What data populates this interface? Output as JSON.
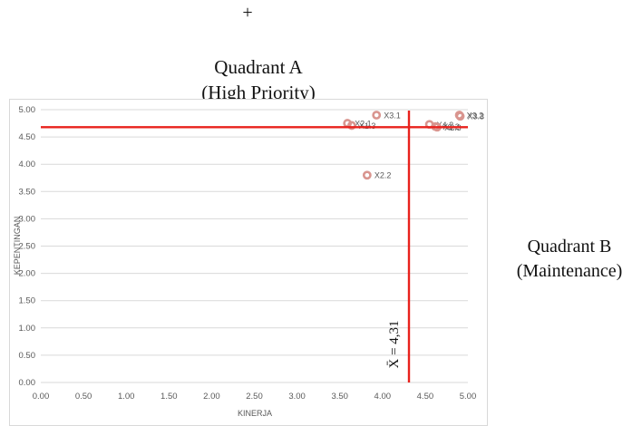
{
  "annotations": {
    "plus": "+",
    "quadrant_a_title": "Quadrant A",
    "quadrant_a_sub": "(High Priority)",
    "quadrant_b_title": "Quadrant B",
    "quadrant_b_sub": "(Maintenance)",
    "mean_label": "X̄ = 4,31"
  },
  "colors": {
    "reference_line": "#e8211c",
    "marker": "#d9958f",
    "axis_text": "#595959",
    "grid": "#d9d9d9"
  },
  "chart_data": {
    "type": "scatter",
    "title": "",
    "xlabel": "KINERJA",
    "ylabel": "KEPENTINGAN",
    "xlim": [
      0,
      5
    ],
    "ylim": [
      0,
      5
    ],
    "x_ticks": [
      "0.00",
      "0.50",
      "1.00",
      "1.50",
      "2.00",
      "2.50",
      "3.00",
      "3.50",
      "4.00",
      "4.50",
      "5.00"
    ],
    "y_ticks": [
      "0.00",
      "0.50",
      "1.00",
      "1.50",
      "2.00",
      "2.50",
      "3.00",
      "3.50",
      "4.00",
      "4.50",
      "5.00"
    ],
    "grid": "horizontal",
    "points": [
      {
        "label": "X3.1",
        "x": 3.93,
        "y": 4.9
      },
      {
        "label": "X2.1",
        "x": 3.59,
        "y": 4.75
      },
      {
        "label": "X1.3",
        "x": 3.64,
        "y": 4.71
      },
      {
        "label": "X2.2",
        "x": 3.82,
        "y": 3.8
      },
      {
        "label": "X4.2",
        "x": 4.55,
        "y": 4.73
      },
      {
        "label": "X1.2",
        "x": 4.62,
        "y": 4.69
      },
      {
        "label": "X2.3",
        "x": 4.64,
        "y": 4.68
      },
      {
        "label": "X3.2",
        "x": 4.9,
        "y": 4.9
      },
      {
        "label": "X3.3",
        "x": 4.91,
        "y": 4.88
      }
    ],
    "reference_lines": {
      "x_mean": 4.31,
      "y_mean": 4.68
    }
  }
}
